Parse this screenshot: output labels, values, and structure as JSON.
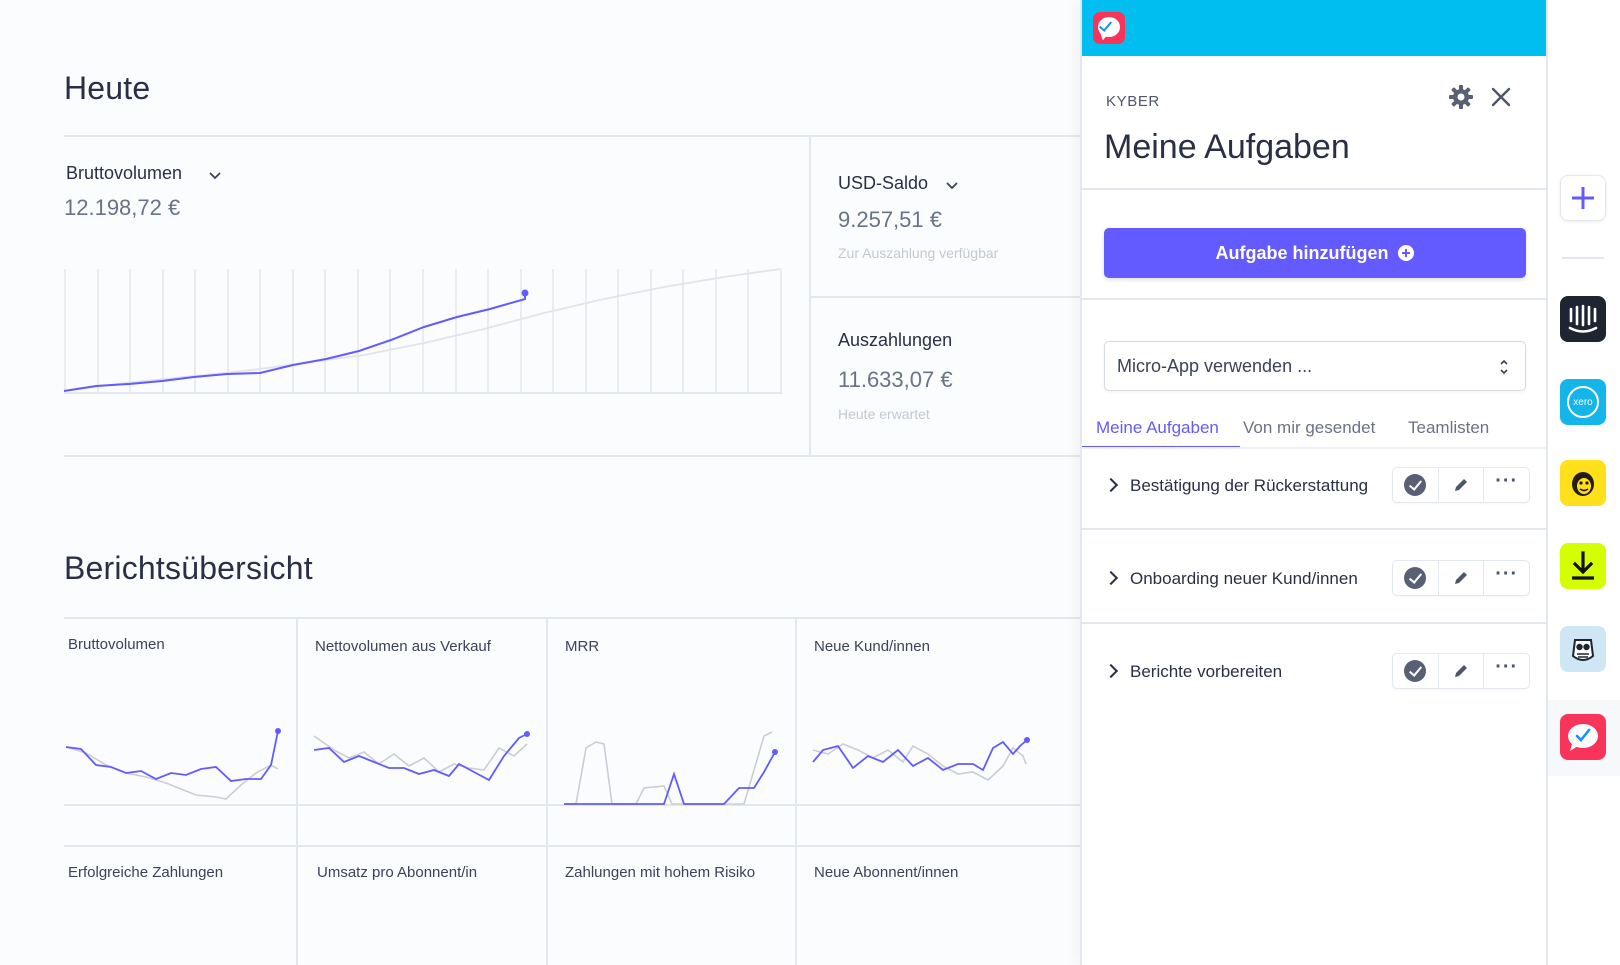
{
  "today": {
    "heading": "Heute",
    "gross": {
      "title": "Bruttovolumen",
      "value": "12.198,72 €"
    },
    "usd": {
      "title": "USD-Saldo",
      "value": "9.257,51 €",
      "sub": "Zur Auszahlung verfügbar"
    },
    "payouts": {
      "title": "Auszahlungen",
      "value": "11.633,07 €",
      "sub": "Heute erwartet"
    }
  },
  "report": {
    "heading": "Berichtsübersicht",
    "cards": [
      {
        "label": "Bruttovolumen"
      },
      {
        "label": "Nettovolumen aus Verkauf"
      },
      {
        "label": "MRR"
      },
      {
        "label": "Neue Kund/innen"
      },
      {
        "label": "Erfolgreiche Zahlungen"
      },
      {
        "label": "Umsatz pro Abonnent/in"
      },
      {
        "label": "Zahlungen mit hohem Risiko"
      },
      {
        "label": "Neue Abonnent/innen"
      }
    ]
  },
  "panel": {
    "vendor": "KYBER",
    "title": "Meine Aufgaben",
    "add_button": "Aufgabe hinzufügen",
    "select_placeholder": "Micro-App verwenden ...",
    "tabs": [
      "Meine Aufgaben",
      "Von mir gesendet",
      "Teamlisten"
    ],
    "active_tab": 0,
    "tasks": [
      {
        "label": "Bestätigung der Rückerstattung"
      },
      {
        "label": "Onboarding neuer Kund/innen"
      },
      {
        "label": "Berichte vorbereiten"
      }
    ]
  },
  "dock": {
    "apps": [
      "add-app",
      "intercom",
      "xero",
      "mailchimp",
      "download",
      "hootsuite-owl",
      "kyber-tasks"
    ],
    "xero_text": "xero"
  },
  "colors": {
    "accent": "#635bff",
    "panel_header": "#00bef0",
    "kyber_red": "#f8345a"
  }
}
